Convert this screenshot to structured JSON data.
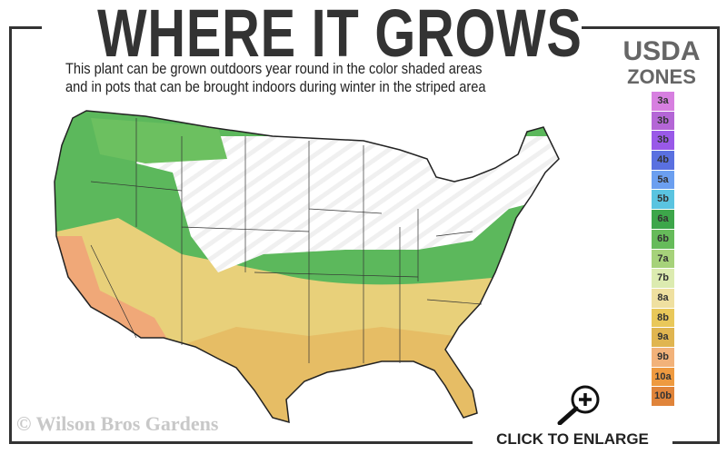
{
  "header": {
    "title": "WHERE IT GROWS",
    "subtitle_line1": "This plant can be grown outdoors year round in the color shaded areas",
    "subtitle_line2": "and in pots that can be brought indoors during winter in the striped area"
  },
  "legend": {
    "title_line1": "USDA",
    "title_line2": "ZONES",
    "zones": [
      {
        "label": "3a",
        "color": "#d77fe0"
      },
      {
        "label": "3b",
        "color": "#b466d6"
      },
      {
        "label": "3b",
        "color": "#9959e8"
      },
      {
        "label": "4b",
        "color": "#5a70e0"
      },
      {
        "label": "5a",
        "color": "#6b9ff0"
      },
      {
        "label": "5b",
        "color": "#5ac4e0"
      },
      {
        "label": "6a",
        "color": "#3da64a"
      },
      {
        "label": "6b",
        "color": "#66bb5a"
      },
      {
        "label": "7a",
        "color": "#a6d27a"
      },
      {
        "label": "7b",
        "color": "#dcebb0"
      },
      {
        "label": "8a",
        "color": "#efe0a0"
      },
      {
        "label": "8b",
        "color": "#e9c85a"
      },
      {
        "label": "9a",
        "color": "#e0b550"
      },
      {
        "label": "9b",
        "color": "#f2b27a"
      },
      {
        "label": "10a",
        "color": "#ee9a40"
      },
      {
        "label": "10b",
        "color": "#e0843a"
      }
    ]
  },
  "map": {
    "colors": {
      "north_unsuitable": "#ffffff",
      "stripe": "#eeeeee",
      "green": "#5cb85c",
      "yellow": "#e8d07a",
      "orange": "#f0a878"
    }
  },
  "footer": {
    "copyright": "© Wilson Bros Gardens",
    "enlarge_label": "CLICK TO ENLARGE",
    "enlarge_icon": "zoom-in-icon"
  }
}
